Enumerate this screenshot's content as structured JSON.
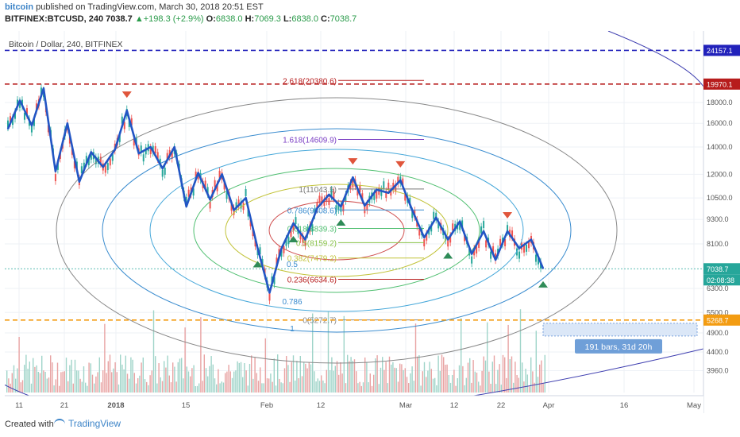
{
  "header": {
    "brand": "bitcoin",
    "published": " published on TradingView.com, March 30, 2018 20:51 EST",
    "symbol": "BITFINEX:BTCUSD, 240",
    "price": "7038.7",
    "change_arrow": "▲",
    "change": "+198.3 (+2.9%)",
    "o_label": "O:",
    "o_val": "6838.0",
    "h_label": "H:",
    "h_val": "7069.3",
    "l_label": "L:",
    "l_val": "6838.0",
    "c_label": "C:",
    "c_val": "7038.7"
  },
  "footer": {
    "created_with": "Created with",
    "tradingview": "TradingView"
  },
  "colors": {
    "up": "#26a69a",
    "down": "#ef5350",
    "blue_line": "#2255c4",
    "fib_red": "#b71c1c",
    "grid": "#eef1f6",
    "orange": "#f39c12"
  },
  "chart_data": {
    "type": "line",
    "title": "Bitcoin / Dollar, 240, BITFINEX",
    "y_scale": "log",
    "ylim": [
      3500,
      26000
    ],
    "x_ticks": [
      "11",
      "21",
      "2018",
      "15",
      "Feb",
      "12",
      "Mar",
      "12",
      "22",
      "Apr",
      "16",
      "May"
    ],
    "y_ticks": [
      "18000.0",
      "16000.0",
      "14000.0",
      "12000.0",
      "10500.0",
      "9300.0",
      "8100.0",
      "6300.0",
      "5500.0",
      "4900.0",
      "4400.0",
      "3960.0"
    ],
    "price_labels": {
      "top": "24157.1",
      "red_level": "19970.1",
      "last": "7038.7",
      "countdown": "02:08:38",
      "orange_level": "5268.7"
    },
    "fib_levels": [
      {
        "label": "2.618(20380.6)",
        "value": 20380.6
      },
      {
        "label": "1.618(14609.9)",
        "value": 14609.9
      },
      {
        "label": "1(11043.5)",
        "value": 11043.5
      },
      {
        "label": "0.786(9808.6)",
        "value": 9808.6
      },
      {
        "label": "0.618(8839.3)",
        "value": 8839.3
      },
      {
        "label": "0.5(8159.2)",
        "value": 8159.2
      },
      {
        "label": "0.382(7479.2)",
        "value": 7479.2
      },
      {
        "label": "0.236(6634.6)",
        "value": 6634.6
      },
      {
        "label": "0(5272.7)",
        "value": 5272.7
      }
    ],
    "ellipse_labels": [
      "0.5",
      "0.786",
      "1"
    ],
    "measure_label": "191 bars, 31d 20h",
    "series": [
      {
        "values": [
          15500,
          18200,
          15800,
          19500,
          12200,
          16000,
          11500,
          13600,
          12500,
          13800,
          17200,
          13500,
          14000,
          12400,
          14000,
          10000,
          12100,
          10400,
          12000,
          9800,
          10500,
          7900,
          6150,
          7900,
          9100,
          8300,
          9900,
          10700,
          10000,
          11800,
          10050,
          11000,
          10800,
          11600,
          9800,
          8400,
          9400,
          8300,
          9200,
          7650,
          8700,
          7400,
          8700,
          7900,
          8300,
          7050
        ]
      }
    ]
  }
}
